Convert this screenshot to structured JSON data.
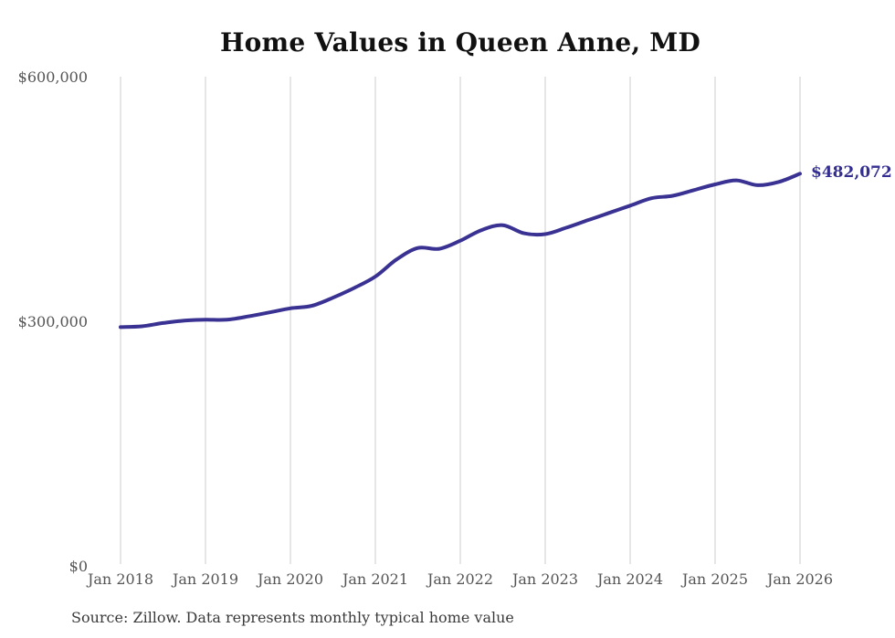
{
  "page": {
    "title": "Home Values in Queen Anne, MD",
    "source_note": "Source: Zillow. Data represents monthly typical home value"
  },
  "chart_data": {
    "type": "line",
    "title": "Home Values in Queen Anne, MD",
    "xlabel": "",
    "ylabel": "",
    "ylim": [
      0,
      600000
    ],
    "grid": "vertical-only",
    "legend": "none",
    "line_color": "#3a3292",
    "annotation_color": "#332e8f",
    "gridline_color": "#cccccc",
    "axis_label_color": "#555555",
    "xticks": [
      "Jan 2018",
      "Jan 2019",
      "Jan 2020",
      "Jan 2021",
      "Jan 2022",
      "Jan 2023",
      "Jan 2024",
      "Jan 2025",
      "Jan 2026"
    ],
    "yticks": [
      {
        "label": "$0",
        "value": 0
      },
      {
        "label": "$300,000",
        "value": 300000
      },
      {
        "label": "$600,000",
        "value": 600000
      }
    ],
    "annotation": {
      "text": "$482,072",
      "value": 482072
    },
    "series": [
      {
        "name": "Monthly typical home value",
        "x": [
          "2018-01",
          "2018-04",
          "2018-07",
          "2018-10",
          "2019-01",
          "2019-04",
          "2019-07",
          "2019-10",
          "2020-01",
          "2020-04",
          "2020-07",
          "2020-10",
          "2021-01",
          "2021-04",
          "2021-07",
          "2021-10",
          "2022-01",
          "2022-04",
          "2022-07",
          "2022-10",
          "2023-01",
          "2023-04",
          "2023-07",
          "2023-10",
          "2024-01",
          "2024-04",
          "2024-07",
          "2024-10",
          "2025-01",
          "2025-04",
          "2025-07",
          "2025-10",
          "2026-01"
        ],
        "values": [
          294000,
          295000,
          299000,
          302000,
          303000,
          303000,
          307000,
          312000,
          317000,
          320000,
          330000,
          342000,
          356000,
          377000,
          391000,
          390000,
          400000,
          413000,
          419000,
          409000,
          408000,
          416000,
          425000,
          434000,
          443000,
          452000,
          455000,
          462000,
          469000,
          474000,
          468000,
          472000,
          482072
        ]
      }
    ]
  }
}
